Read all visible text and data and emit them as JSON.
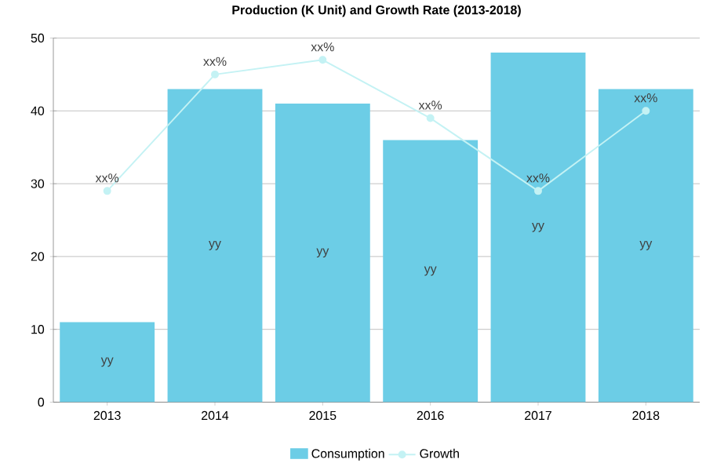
{
  "chart_data": {
    "type": "bar",
    "title": "Production (K Unit) and Growth Rate (2013-2018)",
    "categories": [
      "2013",
      "2014",
      "2015",
      "2016",
      "2017",
      "2018"
    ],
    "series": [
      {
        "name": "Consumption",
        "color": "#6ccde6",
        "values": [
          11,
          43,
          41,
          36,
          48,
          43
        ],
        "value_labels": [
          "yy",
          "yy",
          "yy",
          "yy",
          "yy",
          "yy"
        ]
      },
      {
        "name": "Growth",
        "type": "line",
        "color": "#c4f2f4",
        "marker": "circle",
        "values": [
          29,
          45,
          47,
          39,
          29,
          40
        ],
        "value_labels": [
          "xx%",
          "xx%",
          "xx%",
          "xx%",
          "xx%",
          "xx%"
        ]
      }
    ],
    "ylim": [
      0,
      50
    ],
    "yticks": [
      0,
      10,
      20,
      30,
      40,
      50
    ],
    "grid": "y",
    "legend": "bottom"
  }
}
